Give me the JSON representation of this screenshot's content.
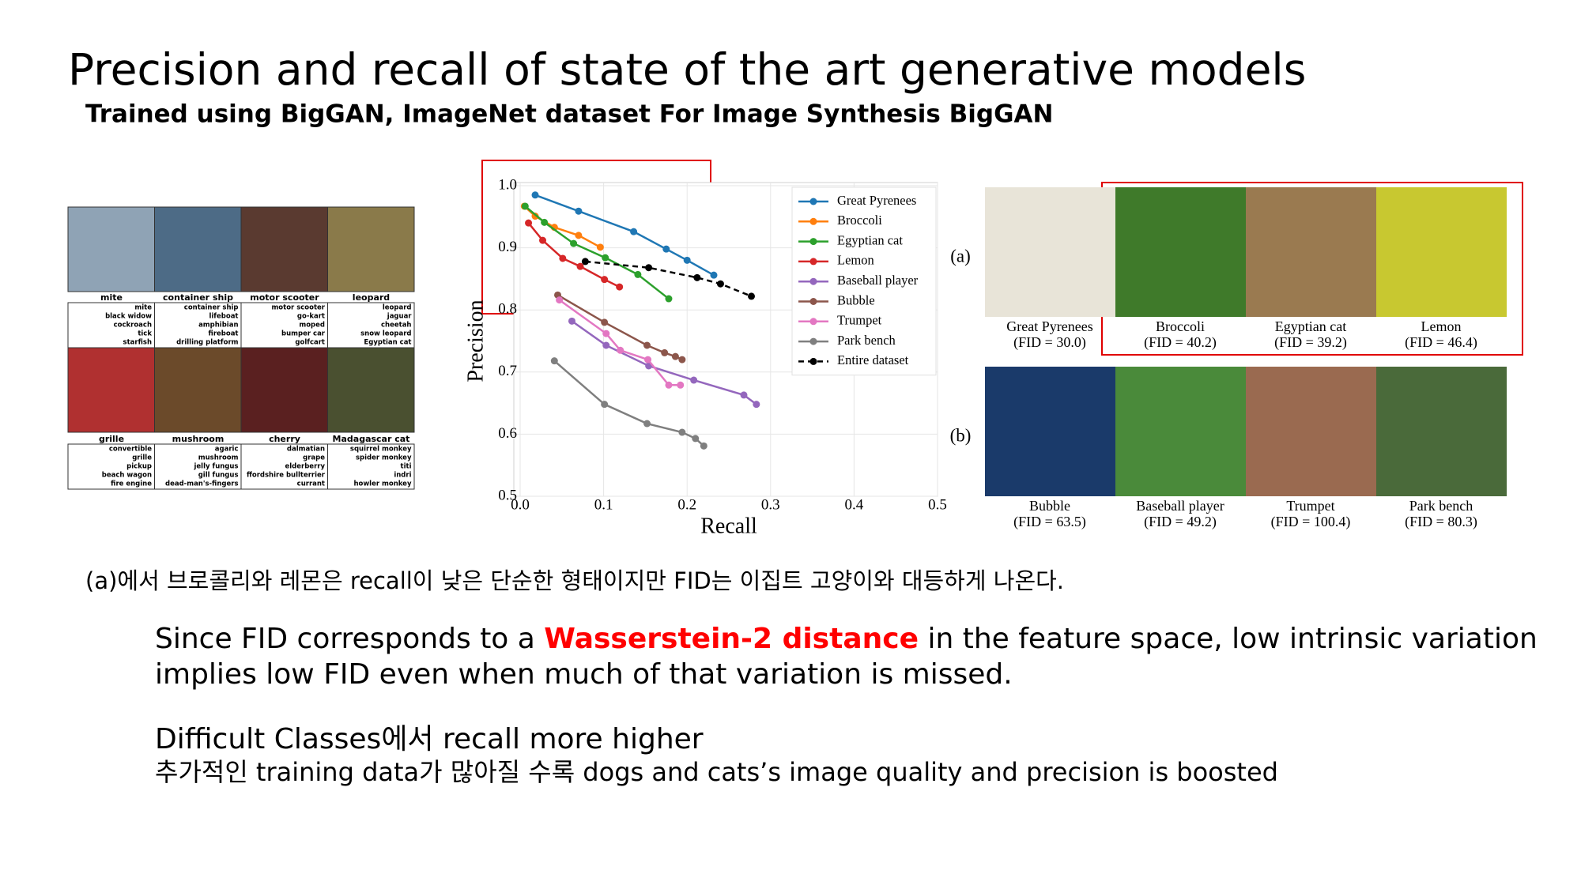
{
  "slide": {
    "title": "Precision and recall of state of the art generative models",
    "subtitle": "Trained using BigGAN, ImageNet dataset  For Image Synthesis BigGAN",
    "samples": [
      {
        "class": "mite",
        "predictions": [
          "mite",
          "black widow",
          "cockroach",
          "tick",
          "starfish"
        ]
      },
      {
        "class": "container ship",
        "predictions": [
          "container ship",
          "lifeboat",
          "amphibian",
          "fireboat",
          "drilling platform"
        ]
      },
      {
        "class": "motor scooter",
        "predictions": [
          "motor scooter",
          "go-kart",
          "moped",
          "bumper car",
          "golfcart"
        ]
      },
      {
        "class": "leopard",
        "predictions": [
          "leopard",
          "jaguar",
          "cheetah",
          "snow leopard",
          "Egyptian cat"
        ]
      },
      {
        "class": "grille",
        "predictions": [
          "convertible",
          "grille",
          "pickup",
          "beach wagon",
          "fire engine"
        ]
      },
      {
        "class": "mushroom",
        "predictions": [
          "agaric",
          "mushroom",
          "jelly fungus",
          "gill fungus",
          "dead-man's-fingers"
        ]
      },
      {
        "class": "cherry",
        "predictions": [
          "dalmatian",
          "grape",
          "elderberry",
          "ffordshire bullterrier",
          "currant"
        ]
      },
      {
        "class": "Madagascar cat",
        "predictions": [
          "squirrel monkey",
          "spider monkey",
          "titi",
          "indri",
          "howler monkey"
        ]
      }
    ],
    "panels": [
      {
        "label": "(a)",
        "images": [
          {
            "name": "Great Pyrenees",
            "fid": "(FID = 30.0)"
          },
          {
            "name": "Broccoli",
            "fid": "(FID = 40.2)"
          },
          {
            "name": "Egyptian cat",
            "fid": "(FID = 39.2)"
          },
          {
            "name": "Lemon",
            "fid": "(FID = 46.4)"
          }
        ]
      },
      {
        "label": "(b)",
        "images": [
          {
            "name": "Bubble",
            "fid": "(FID = 63.5)"
          },
          {
            "name": "Baseball player",
            "fid": "(FID = 49.2)"
          },
          {
            "name": "Trumpet",
            "fid": "(FID = 100.4)"
          },
          {
            "name": "Park bench",
            "fid": "(FID = 80.3)"
          }
        ]
      }
    ],
    "note": "(a)에서 브로콜리와 레몬은 recall이 낮은 단순한 형태이지만 FID는 이집트 고양이와 대등하게 나온다.",
    "paragraph": {
      "before": "Since FID corresponds to a ",
      "highlight": "Wasserstein-2 distance",
      "after": " in the feature space, low intrinsic variation",
      "line2": "implies low FID even when much of that variation is missed."
    },
    "difficult": "Difficult Classes에서 recall more higher",
    "detail": "추가적인 training data가 많아질 수록 dogs and cats’s image quality and precision is boosted"
  },
  "chart_data": {
    "type": "line",
    "xlabel": "Recall",
    "ylabel": "Precision",
    "xlim": [
      0,
      0.5
    ],
    "ylim": [
      0.5,
      1
    ],
    "xticks": [
      {
        "value": 0,
        "label": "0.0"
      },
      0.1,
      0.2,
      0.3,
      0.4,
      0.5
    ],
    "yticks": [
      0.5,
      0.6,
      0.7,
      0.8,
      0.9,
      {
        "value": 1,
        "label": "1.0"
      }
    ],
    "grid": true,
    "legend": "upper right",
    "series": [
      {
        "name": "Great Pyrenees",
        "color": "#1f77b4",
        "x": [
          0.018,
          0.07,
          0.136,
          0.175,
          0.2,
          0.232
        ],
        "values": [
          0.985,
          0.959,
          0.926,
          0.898,
          0.88,
          0.856
        ]
      },
      {
        "name": "Broccoli",
        "color": "#ff7f0e",
        "x": [
          0.005,
          0.018,
          0.041,
          0.07,
          0.096
        ],
        "values": [
          0.967,
          0.951,
          0.933,
          0.92,
          0.901
        ]
      },
      {
        "name": "Egyptian cat",
        "color": "#2ca02c",
        "x": [
          0.006,
          0.029,
          0.064,
          0.102,
          0.141,
          0.178
        ],
        "values": [
          0.967,
          0.941,
          0.907,
          0.884,
          0.857,
          0.818
        ]
      },
      {
        "name": "Lemon",
        "color": "#d62728",
        "x": [
          0.01,
          0.027,
          0.051,
          0.072,
          0.101,
          0.119
        ],
        "values": [
          0.94,
          0.912,
          0.883,
          0.87,
          0.849,
          0.837
        ]
      },
      {
        "name": "Baseball player",
        "color": "#9467bd",
        "x": [
          0.062,
          0.103,
          0.154,
          0.208,
          0.268,
          0.283
        ],
        "values": [
          0.782,
          0.743,
          0.71,
          0.687,
          0.663,
          0.648
        ]
      },
      {
        "name": "Bubble",
        "color": "#8c564b",
        "x": [
          0.045,
          0.101,
          0.152,
          0.173,
          0.186,
          0.194
        ],
        "values": [
          0.824,
          0.78,
          0.743,
          0.731,
          0.725,
          0.72
        ]
      },
      {
        "name": "Trumpet",
        "color": "#e377c2",
        "x": [
          0.047,
          0.103,
          0.12,
          0.153,
          0.178,
          0.192
        ],
        "values": [
          0.816,
          0.762,
          0.735,
          0.72,
          0.679,
          0.679
        ]
      },
      {
        "name": "Park bench",
        "color": "#7f7f7f",
        "x": [
          0.041,
          0.101,
          0.152,
          0.194,
          0.21,
          0.22
        ],
        "values": [
          0.718,
          0.648,
          0.617,
          0.603,
          0.593,
          0.581
        ]
      },
      {
        "name": "Entire dataset",
        "color": "#000000",
        "linestyle": "dashed",
        "x": [
          0.078,
          0.154,
          0.212,
          0.24,
          0.277
        ],
        "values": [
          0.878,
          0.868,
          0.852,
          0.842,
          0.822
        ]
      }
    ]
  }
}
